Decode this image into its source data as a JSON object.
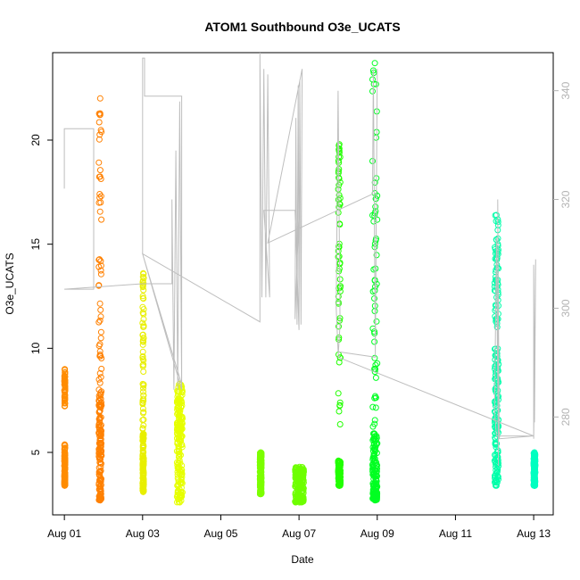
{
  "chart_data": {
    "type": "scatter",
    "title": "ATOM1 Southbound O3e_UCATS",
    "xlabel": "Date",
    "ylabel": "O3e_UCATS",
    "xlim": [
      -0.3,
      12.5
    ],
    "ylim": [
      2.0,
      24.2
    ],
    "y2lim": [
      262.0,
      347.0
    ],
    "grid": false,
    "x_ticks": [
      {
        "value": 0,
        "label": "Aug 01"
      },
      {
        "value": 2,
        "label": "Aug 03"
      },
      {
        "value": 4,
        "label": "Aug 05"
      },
      {
        "value": 6,
        "label": "Aug 07"
      },
      {
        "value": 8,
        "label": "Aug 09"
      },
      {
        "value": 10,
        "label": "Aug 11"
      },
      {
        "value": 12,
        "label": "Aug 13"
      }
    ],
    "y_ticks": [
      5,
      10,
      15,
      20
    ],
    "y2_ticks": [
      280,
      300,
      320,
      340
    ],
    "bands": [
      {
        "x": 0.0,
        "w": 0.02,
        "ymin": 3.4,
        "ymax": 9.0,
        "top": [
          7.2,
          9.0
        ],
        "dense": [
          3.4,
          5.4
        ],
        "color": "#ff8c00"
      },
      {
        "x": 0.88,
        "w": 0.07,
        "ymin": 2.7,
        "ymax": 22.0,
        "top": [
          2.7,
          22.0
        ],
        "dense": [
          2.7,
          8.0
        ],
        "color": "#ff8000"
      },
      {
        "x": 2.0,
        "w": 0.03,
        "ymin": 3.1,
        "ymax": 13.6,
        "top": [
          6.0,
          13.6
        ],
        "dense": [
          3.1,
          6.0
        ],
        "color": "#e8ef00"
      },
      {
        "x": 2.88,
        "w": 0.14,
        "ymin": 2.6,
        "ymax": 8.3,
        "top": [
          6.0,
          8.3
        ],
        "dense": [
          2.6,
          7.5
        ],
        "color": "#e6ff00"
      },
      {
        "x": 5.0,
        "w": 0.04,
        "ymin": 3.0,
        "ymax": 5.0,
        "top": [
          4.3,
          5.0
        ],
        "dense": [
          3.0,
          4.6
        ],
        "color": "#7cff00"
      },
      {
        "x": 5.9,
        "w": 0.22,
        "ymin": 2.6,
        "ymax": 4.3,
        "top": [
          3.8,
          4.3
        ],
        "dense": [
          2.6,
          4.2
        ],
        "color": "#6eff00"
      },
      {
        "x": 7.0,
        "w": 0.06,
        "ymin": 3.4,
        "ymax": 19.8,
        "top": [
          6.0,
          19.8
        ],
        "dense": [
          3.4,
          4.6
        ],
        "color": "#22ff00"
      },
      {
        "x": 7.88,
        "w": 0.12,
        "ymin": 2.7,
        "ymax": 23.7,
        "top": [
          6.0,
          23.7
        ],
        "dense": [
          2.7,
          6.0
        ],
        "color": "#00ff22"
      },
      {
        "x": 11.0,
        "w": 0.1,
        "ymin": 3.4,
        "ymax": 16.4,
        "top": [
          11.0,
          16.4
        ],
        "dense": [
          3.4,
          10.0
        ],
        "color": "#00ffaa"
      },
      {
        "x": 12.0,
        "w": 0.04,
        "ymin": 3.4,
        "ymax": 5.0,
        "top": [
          4.3,
          5.0
        ],
        "dense": [
          3.4,
          4.6
        ],
        "color": "#00ffc0"
      }
    ],
    "altitude_line": {
      "color": "#bebebe",
      "points": [
        [
          0.0,
          330
        ],
        [
          0.0,
          322
        ],
        [
          0.0,
          333
        ],
        [
          0.75,
          333
        ],
        [
          0.75,
          303.5
        ],
        [
          0.0,
          303.5
        ],
        [
          2.0,
          304.5
        ],
        [
          2.75,
          304.5
        ],
        [
          2.75,
          320
        ],
        [
          2.8,
          285
        ],
        [
          2.85,
          329
        ],
        [
          2.9,
          285
        ],
        [
          2.95,
          338
        ],
        [
          3.0,
          285
        ],
        [
          2.0,
          310
        ],
        [
          2.0,
          346
        ],
        [
          2.05,
          346
        ],
        [
          2.05,
          339
        ],
        [
          3.0,
          339
        ],
        [
          3.0,
          286
        ],
        [
          2.0,
          310
        ],
        [
          5.0,
          297.5
        ],
        [
          5.0,
          347
        ],
        [
          5.05,
          302
        ],
        [
          5.1,
          344
        ],
        [
          5.15,
          302
        ],
        [
          5.2,
          343
        ],
        [
          5.25,
          302
        ],
        [
          5.1,
          318
        ],
        [
          5.2,
          318
        ],
        [
          5.9,
          318
        ],
        [
          6.0,
          296
        ],
        [
          6.0,
          318
        ],
        [
          5.9,
          298
        ],
        [
          5.92,
          335
        ],
        [
          5.95,
          297
        ],
        [
          5.98,
          341
        ],
        [
          6.0,
          297
        ],
        [
          6.02,
          342
        ],
        [
          6.05,
          297
        ],
        [
          6.08,
          344
        ],
        [
          5.2,
          312
        ],
        [
          7.88,
          321
        ],
        [
          7.9,
          344
        ],
        [
          7.95,
          292
        ],
        [
          8.0,
          344
        ],
        [
          7.95,
          291
        ],
        [
          7.0,
          292
        ],
        [
          6.95,
          300
        ],
        [
          7.0,
          340
        ],
        [
          7.05,
          297
        ],
        [
          7.0,
          291
        ],
        [
          12.0,
          276.5
        ],
        [
          11.05,
          276.5
        ],
        [
          11.0,
          281
        ],
        [
          11.05,
          313
        ],
        [
          11.1,
          271
        ],
        [
          11.08,
          320
        ],
        [
          11.12,
          276
        ],
        [
          12.0,
          276.5
        ],
        [
          12.0,
          308
        ],
        [
          12.02,
          279
        ],
        [
          12.05,
          309
        ],
        [
          12.0,
          276
        ]
      ]
    }
  }
}
